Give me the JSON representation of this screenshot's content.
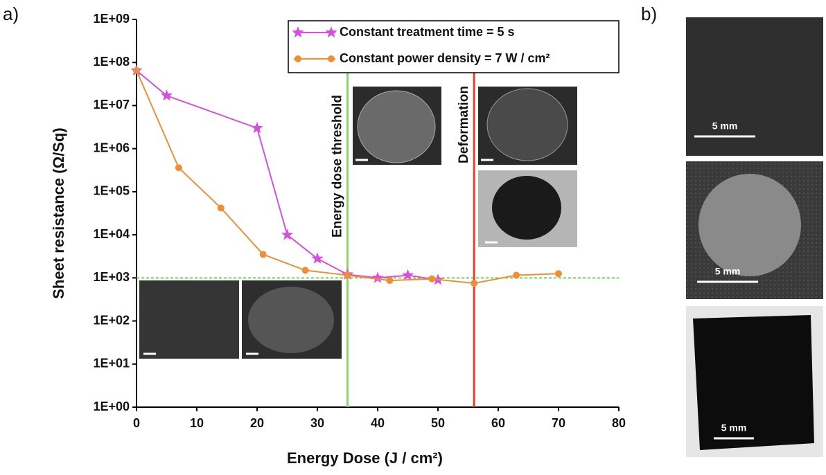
{
  "chart_data": {
    "type": "line",
    "panel_label": "a)",
    "x_label": "Energy Dose (J / cm²)",
    "y_label": "Sheet resistance (Ω/Sq)",
    "xlim": [
      0,
      80
    ],
    "xticks": [
      0,
      10,
      20,
      30,
      40,
      50,
      60,
      70,
      80
    ],
    "ylim": [
      1,
      1000000000
    ],
    "log_y": true,
    "yticks": [
      {
        "value": 1,
        "label": "1E+00"
      },
      {
        "value": 10,
        "label": "1E+01"
      },
      {
        "value": 100,
        "label": "1E+02"
      },
      {
        "value": 1000,
        "label": "1E+03"
      },
      {
        "value": 10000,
        "label": "1E+04"
      },
      {
        "value": 100000,
        "label": "1E+05"
      },
      {
        "value": 1000000,
        "label": "1E+06"
      },
      {
        "value": 10000000,
        "label": "1E+07"
      },
      {
        "value": 100000000,
        "label": "1E+08"
      },
      {
        "value": 1000000000,
        "label": "1E+09"
      }
    ],
    "legend_position": "top-right",
    "series": [
      {
        "name": "Constant treatment time = 5 s",
        "color": "#d64fe0",
        "marker": "star",
        "x": [
          0,
          5,
          20,
          25,
          30,
          35,
          40,
          45,
          50
        ],
        "values": [
          65000000,
          17000000,
          3000000,
          10000,
          2800,
          1200,
          1000,
          1150,
          900
        ]
      },
      {
        "name": "Constant power density = 7 W / cm²",
        "color": "#ee8f35",
        "marker": "circle",
        "x": [
          0,
          7,
          14,
          21,
          28,
          35,
          42,
          49,
          56,
          63,
          70
        ],
        "values": [
          65000000,
          360000,
          42000,
          3500,
          1500,
          1150,
          870,
          950,
          750,
          1150,
          1250
        ]
      }
    ],
    "reference_lines": [
      {
        "axis": "y",
        "value": 1000,
        "color": "#62e04a",
        "dash": true
      },
      {
        "axis": "x",
        "value": 35,
        "color": "#8fd36a",
        "label": "Energy dose threshold"
      },
      {
        "axis": "x",
        "value": 56,
        "color": "#e8412f",
        "label": "Deformation"
      }
    ]
  },
  "panel_b": {
    "label": "b)",
    "scale_labels": [
      "5 mm",
      "5 mm",
      "5 mm"
    ]
  }
}
